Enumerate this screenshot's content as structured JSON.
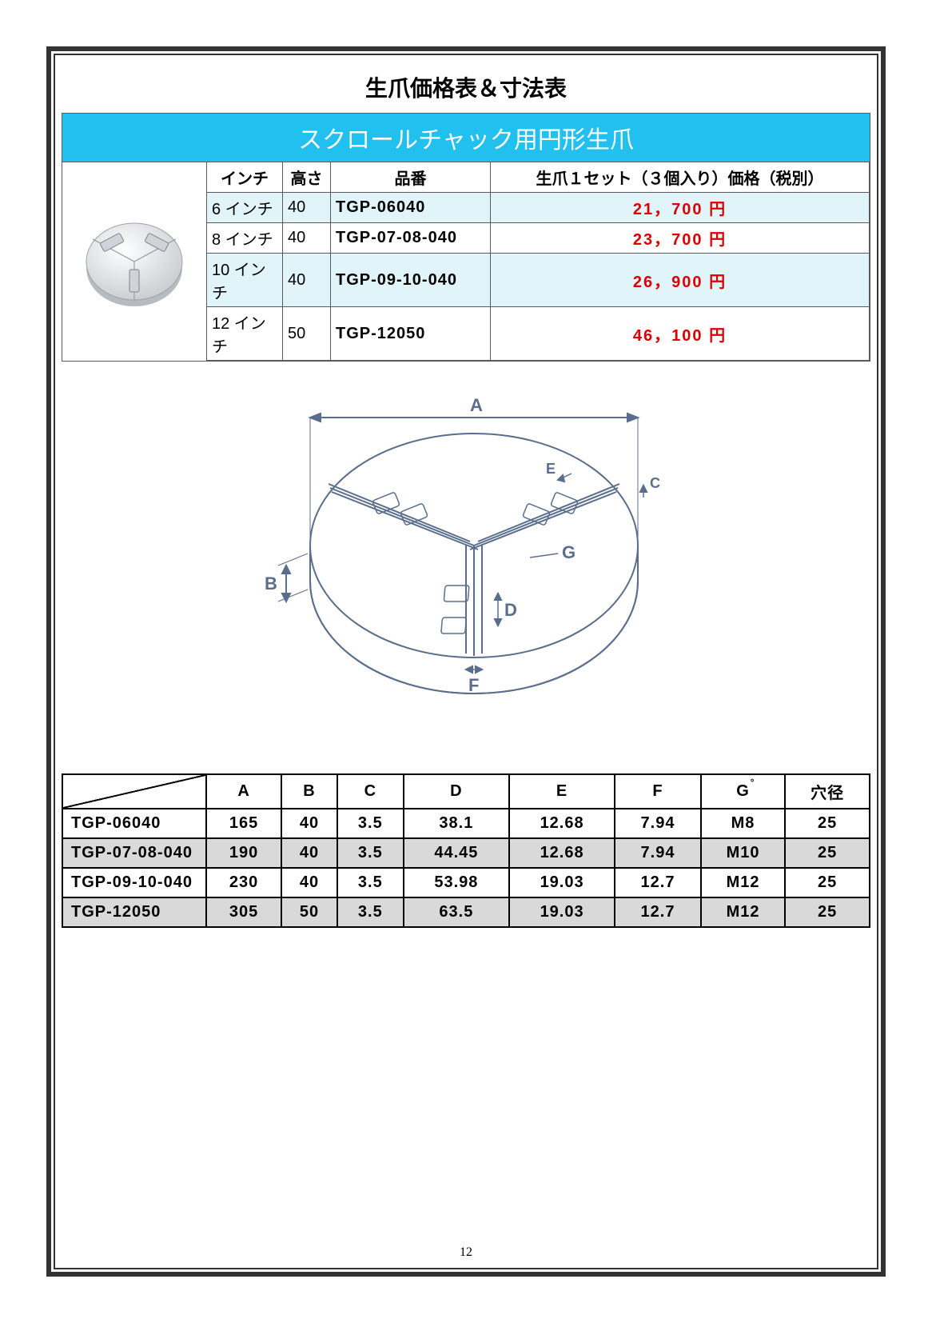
{
  "page": {
    "title": "生爪価格表＆寸法表",
    "subtitle": "スクロールチャック用円形生爪",
    "pageNumber": "12"
  },
  "priceTable": {
    "columns": [
      "インチ",
      "高さ",
      "品番",
      "生爪１セット（３個入り）価格（税別）"
    ],
    "rows": [
      {
        "inch": "6 インチ",
        "height": "40",
        "code": "TGP-06040",
        "price": "21，700 円",
        "alt": true
      },
      {
        "inch": "8 インチ",
        "height": "40",
        "code": "TGP-07-08-040",
        "price": "23，700 円",
        "alt": false
      },
      {
        "inch": "10 インチ",
        "height": "40",
        "code": "TGP-09-10-040",
        "price": "26，900 円",
        "alt": true
      },
      {
        "inch": "12 インチ",
        "height": "50",
        "code": "TGP-12050",
        "price": "46，100 円",
        "alt": false
      }
    ]
  },
  "diagram": {
    "labels": {
      "A": "A",
      "B": "B",
      "C": "C",
      "D": "D",
      "E": "E",
      "F": "F",
      "G": "G"
    },
    "colors": {
      "stroke": "#5a6e8c",
      "fill": "#f5f7fa",
      "text": "#5a6e8c"
    }
  },
  "dimsTable": {
    "columns": [
      "",
      "A",
      "B",
      "C",
      "D",
      "E",
      "F",
      "G°",
      "穴径"
    ],
    "rows": [
      {
        "code": "TGP-06040",
        "A": "165",
        "B": "40",
        "C": "3.5",
        "D": "38.1",
        "E": "12.68",
        "F": "7.94",
        "G": "M8",
        "hole": "25",
        "alt": false
      },
      {
        "code": "TGP-07-08-040",
        "A": "190",
        "B": "40",
        "C": "3.5",
        "D": "44.45",
        "E": "12.68",
        "F": "7.94",
        "G": "M10",
        "hole": "25",
        "alt": true
      },
      {
        "code": "TGP-09-10-040",
        "A": "230",
        "B": "40",
        "C": "3.5",
        "D": "53.98",
        "E": "19.03",
        "F": "12.7",
        "G": "M12",
        "hole": "25",
        "alt": false
      },
      {
        "code": "TGP-12050",
        "A": "305",
        "B": "50",
        "C": "3.5",
        "D": "63.5",
        "E": "19.03",
        "F": "12.7",
        "G": "M12",
        "hole": "25",
        "alt": true
      }
    ]
  }
}
